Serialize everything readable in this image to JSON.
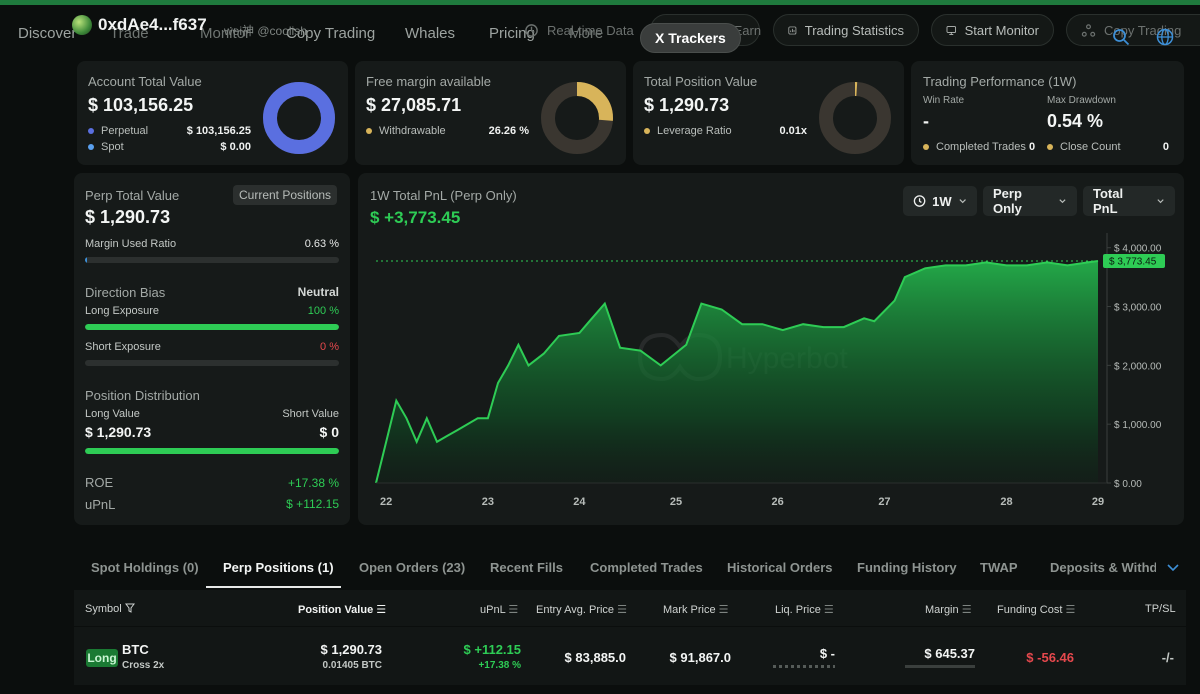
{
  "nav": {
    "items": [
      "Discover",
      "Trade",
      "Monitor",
      "Copy Trading",
      "Whales",
      "Pricing",
      "More"
    ],
    "wallet_address": "0xdAe4...f637",
    "wallet_sub": "wei神 @coolish",
    "pills": {
      "realtime": "Real-time Data",
      "x_trackers": "X Trackers",
      "share": "Share & Earn",
      "trading_stats": "Trading Statistics",
      "start_monitor": "Start Monitor",
      "copy_trading": "Copy Trading"
    }
  },
  "cards": {
    "account": {
      "label": "Account Total Value",
      "value": "$ 103,156.25",
      "legend": [
        {
          "label": "Perpetual",
          "value": "$ 103,156.25",
          "color": "#5a6fe0"
        },
        {
          "label": "Spot",
          "value": "$ 0.00",
          "color": "#5aa0ef"
        }
      ],
      "donut_fraction": 1.0,
      "donut_color": "#5a6fe0"
    },
    "margin": {
      "label": "Free margin available",
      "value": "$ 27,085.71",
      "legend": [
        {
          "label": "Withdrawable",
          "value": "26.26 %",
          "color": "#d8b45a"
        }
      ],
      "donut_fraction": 0.2626,
      "donut_color": "#d8b45a"
    },
    "position": {
      "label": "Total Position Value",
      "value": "$ 1,290.73",
      "legend": [
        {
          "label": "Leverage Ratio",
          "value": "0.01x",
          "color": "#d8b45a"
        }
      ],
      "donut_fraction": 0.01,
      "donut_color": "#d8b45a"
    },
    "performance": {
      "label": "Trading Performance (1W)",
      "win_rate_label": "Win Rate",
      "win_rate_value": "-",
      "max_dd_label": "Max Drawdown",
      "max_dd_value": "0.54 %",
      "completed_label": "Completed Trades",
      "completed_value": "0",
      "close_label": "Close Count",
      "close_value": "0",
      "dot_color": "#d8b45a"
    }
  },
  "left_panel": {
    "perp_label": "Perp Total Value",
    "current_positions_btn": "Current Positions",
    "perp_value": "$ 1,290.73",
    "margin_used_label": "Margin Used Ratio",
    "margin_used_value": "0.63 %",
    "margin_used_fraction": 0.0063,
    "direction_label": "Direction Bias",
    "direction_value": "Neutral",
    "long_exposure_label": "Long Exposure",
    "long_exposure_value": "100 %",
    "long_exposure_fraction": 1.0,
    "short_exposure_label": "Short Exposure",
    "short_exposure_value": "0 %",
    "short_exposure_fraction": 0.0,
    "distribution_label": "Position Distribution",
    "long_value_label": "Long Value",
    "long_value": "$ 1,290.73",
    "short_value_label": "Short Value",
    "short_value": "$ 0",
    "distribution_fraction": 1.0,
    "roe_label": "ROE",
    "roe_value": "+17.38 %",
    "upnl_label": "uPnL",
    "upnl_value": "$ +112.15"
  },
  "chart_card": {
    "title": "1W Total PnL (Perp Only)",
    "value": "$ +3,773.45",
    "selects": {
      "period": "1W",
      "scope": "Perp Only",
      "metric": "Total PnL"
    },
    "watermark": "Hyperbot",
    "current_label": "$ 3,773.45"
  },
  "chart_data": {
    "type": "area",
    "title": "1W Total PnL (Perp Only)",
    "x_ticks": [
      "22",
      "23",
      "24",
      "25",
      "26",
      "27",
      "28",
      "29"
    ],
    "y_ticks": [
      "$ 4,000.00",
      "$ 3,000.00",
      "$ 2,000.00",
      "$ 1,000.00",
      "$ 0.00"
    ],
    "ylim": [
      0,
      4250
    ],
    "x_range": [
      21.9,
      29.0
    ],
    "current_value": 3773.45,
    "series": [
      {
        "color": "#2ecc55",
        "points": [
          [
            21.9,
            0
          ],
          [
            22.0,
            700
          ],
          [
            22.1,
            1400
          ],
          [
            22.2,
            1100
          ],
          [
            22.3,
            700
          ],
          [
            22.4,
            1100
          ],
          [
            22.5,
            700
          ],
          [
            22.6,
            800
          ],
          [
            22.7,
            900
          ],
          [
            22.9,
            1100
          ],
          [
            23.0,
            1100
          ],
          [
            23.1,
            1700
          ],
          [
            23.2,
            2000
          ],
          [
            23.3,
            2350
          ],
          [
            23.4,
            2000
          ],
          [
            23.55,
            2200
          ],
          [
            23.7,
            2500
          ],
          [
            23.9,
            2550
          ],
          [
            24.0,
            2750
          ],
          [
            24.15,
            3050
          ],
          [
            24.3,
            2300
          ],
          [
            24.5,
            2250
          ],
          [
            24.7,
            2000
          ],
          [
            24.95,
            2350
          ],
          [
            25.1,
            3050
          ],
          [
            25.3,
            2950
          ],
          [
            25.5,
            2700
          ],
          [
            25.7,
            2700
          ],
          [
            25.9,
            2600
          ],
          [
            26.1,
            2700
          ],
          [
            26.3,
            2650
          ],
          [
            26.5,
            2650
          ],
          [
            26.7,
            2800
          ],
          [
            26.8,
            2750
          ],
          [
            27.0,
            3100
          ],
          [
            27.1,
            3500
          ],
          [
            27.3,
            3650
          ],
          [
            27.5,
            3700
          ],
          [
            27.7,
            3700
          ],
          [
            27.9,
            3750
          ],
          [
            28.1,
            3700
          ],
          [
            28.3,
            3700
          ],
          [
            28.5,
            3750
          ],
          [
            28.7,
            3700
          ],
          [
            28.9,
            3750
          ],
          [
            29.0,
            3773.45
          ]
        ]
      }
    ],
    "grid": false
  },
  "tabs": [
    "Spot Holdings (0)",
    "Perp Positions (1)",
    "Open Orders (23)",
    "Recent Fills",
    "Completed Trades",
    "Historical Orders",
    "Funding History",
    "TWAP",
    "Deposits & Withdra"
  ],
  "table": {
    "headers": {
      "symbol": "Symbol",
      "position_value": "Position Value",
      "upnl": "uPnL",
      "entry": "Entry Avg. Price",
      "mark": "Mark Price",
      "liq": "Liq. Price",
      "margin": "Margin",
      "funding": "Funding Cost",
      "tpsl": "TP/SL"
    },
    "rows": [
      {
        "side": "Long",
        "symbol": "BTC",
        "mode": "Cross 2x",
        "position_value": "$ 1,290.73",
        "position_size": "0.01405 BTC",
        "upnl": "$ +112.15",
        "upnl_pct": "+17.38 %",
        "entry": "$ 83,885.0",
        "mark": "$ 91,867.0",
        "liq": "$ -",
        "margin": "$ 645.37",
        "funding": "$ -56.46",
        "tpsl": "-/-"
      }
    ]
  }
}
